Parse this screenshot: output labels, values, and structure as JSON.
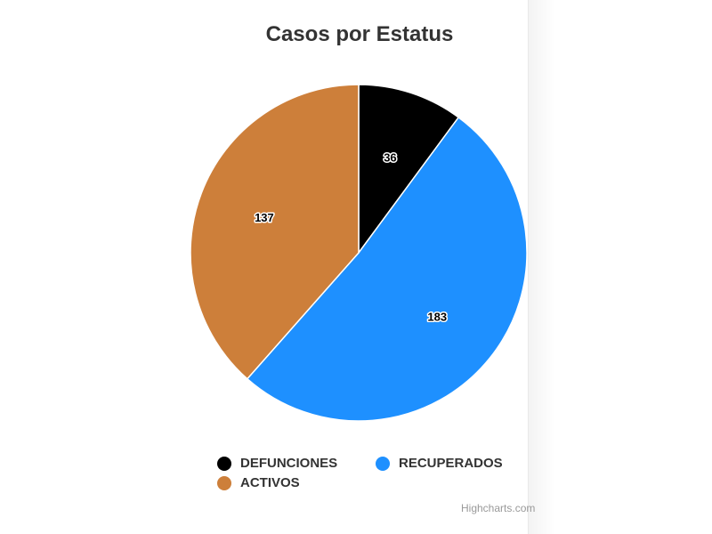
{
  "chart_data": {
    "type": "pie",
    "title": "Casos por Estatus",
    "categories": [
      "DEFUNCIONES",
      "RECUPERADOS",
      "ACTIVOS"
    ],
    "values": [
      36,
      183,
      137
    ],
    "colors": [
      "#000000",
      "#1e90ff",
      "#cd7f3a"
    ],
    "data_labels": [
      "36",
      "183",
      "137"
    ],
    "legend_placement": "bottom"
  },
  "credits": "Highcharts.com"
}
